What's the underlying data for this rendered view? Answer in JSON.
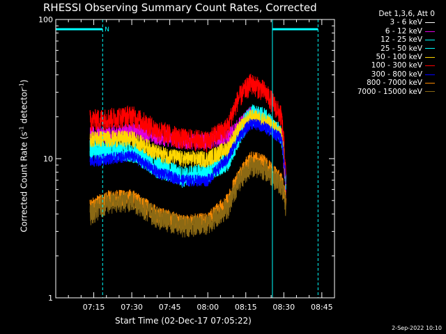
{
  "chart_data": {
    "type": "line",
    "title": "RHESSI Observing Summary Count Rates, Corrected",
    "xlabel": "Start Time (02-Dec-17 07:05:22)",
    "ylabel_main": "Corrected Count Rate (s",
    "ylabel_sup1": "-1",
    "ylabel_mid": " detector",
    "ylabel_sup2": "-1",
    "ylabel_end": ")",
    "y_scale": "log",
    "ylim": [
      1,
      100
    ],
    "y_ticks": [
      {
        "value": 1,
        "label": "1"
      },
      {
        "value": 10,
        "label": "10"
      },
      {
        "value": 100,
        "label": "100"
      }
    ],
    "xlim_minutes": [
      0,
      110
    ],
    "x_ticks": [
      {
        "value": 15,
        "label": "07:15"
      },
      {
        "value": 30,
        "label": "07:30"
      },
      {
        "value": 45,
        "label": "07:45"
      },
      {
        "value": 60,
        "label": "08:00"
      },
      {
        "value": 75,
        "label": "08:15"
      },
      {
        "value": 90,
        "label": "08:30"
      },
      {
        "value": 105,
        "label": "08:45"
      }
    ],
    "legend_header": "Det 1,3,6, Att 0",
    "legend_position": "right",
    "night_marker_label": "N",
    "night_bars": [
      {
        "start": 0,
        "end": 18.5
      },
      {
        "start": 85.5,
        "end": 103.5
      }
    ],
    "night_lines": [
      0,
      18.5,
      85.5,
      103.5
    ],
    "data_start": 13.5,
    "data_end": 90.8,
    "series": [
      {
        "name": "3 - 6 keV",
        "color": "#000000",
        "profile": [
          [
            13.5,
            16
          ],
          [
            20,
            16.5
          ],
          [
            30,
            17.5
          ],
          [
            40,
            16
          ],
          [
            50,
            15.5
          ],
          [
            60,
            15.5
          ],
          [
            68,
            16
          ],
          [
            72,
            20
          ],
          [
            77,
            22
          ],
          [
            82,
            21
          ],
          [
            89,
            17
          ],
          [
            90.8,
            9
          ]
        ]
      },
      {
        "name": "6 - 12 keV",
        "color": "#e000e0",
        "profile": [
          [
            13.5,
            15
          ],
          [
            20,
            15
          ],
          [
            30,
            16
          ],
          [
            40,
            14.5
          ],
          [
            50,
            13.5
          ],
          [
            60,
            13.5
          ],
          [
            68,
            14.5
          ],
          [
            72,
            17
          ],
          [
            77,
            21
          ],
          [
            82,
            19
          ],
          [
            89,
            15
          ],
          [
            90.8,
            5
          ]
        ]
      },
      {
        "name": "12 - 25 keV",
        "color": "#00ffff",
        "profile": [
          [
            13.5,
            12
          ],
          [
            20,
            12
          ],
          [
            30,
            11.5
          ],
          [
            40,
            9
          ],
          [
            50,
            7.5
          ],
          [
            60,
            8
          ],
          [
            68,
            10
          ],
          [
            72,
            15
          ],
          [
            77,
            21
          ],
          [
            82,
            20
          ],
          [
            89,
            15
          ],
          [
            90.8,
            7
          ]
        ]
      },
      {
        "name": "25 - 50 keV",
        "color": "#00ffff",
        "profile": [
          [
            13.5,
            11
          ],
          [
            20,
            11
          ],
          [
            30,
            10.5
          ],
          [
            40,
            8
          ],
          [
            50,
            7
          ],
          [
            60,
            7.5
          ],
          [
            68,
            9
          ],
          [
            72,
            13
          ],
          [
            77,
            19
          ],
          [
            82,
            18
          ],
          [
            89,
            14
          ],
          [
            90.8,
            7
          ]
        ]
      },
      {
        "name": "50 - 100 keV",
        "color": "#ffd700",
        "profile": [
          [
            13.5,
            14
          ],
          [
            20,
            14
          ],
          [
            30,
            14
          ],
          [
            40,
            11
          ],
          [
            50,
            10
          ],
          [
            60,
            10
          ],
          [
            68,
            12
          ],
          [
            72,
            16
          ],
          [
            77,
            20
          ],
          [
            82,
            19
          ],
          [
            89,
            15
          ],
          [
            90.8,
            7
          ]
        ]
      },
      {
        "name": "100 - 300 keV",
        "color": "#ff0000",
        "profile": [
          [
            13.5,
            19
          ],
          [
            20,
            19.5
          ],
          [
            30,
            20.5
          ],
          [
            40,
            16
          ],
          [
            50,
            14
          ],
          [
            60,
            13.5
          ],
          [
            68,
            17
          ],
          [
            72,
            27
          ],
          [
            77,
            35
          ],
          [
            82,
            31
          ],
          [
            89,
            20
          ],
          [
            90.8,
            7
          ]
        ]
      },
      {
        "name": "300 - 800 keV",
        "color": "#0000ff",
        "profile": [
          [
            13.5,
            9.5
          ],
          [
            20,
            10
          ],
          [
            30,
            10.5
          ],
          [
            40,
            8
          ],
          [
            50,
            7
          ],
          [
            60,
            7
          ],
          [
            68,
            10
          ],
          [
            72,
            14
          ],
          [
            77,
            18
          ],
          [
            82,
            17
          ],
          [
            89,
            14
          ],
          [
            90.8,
            7
          ]
        ]
      },
      {
        "name": "800 - 7000 keV",
        "color": "#ff8c00",
        "profile": [
          [
            13.5,
            4.5
          ],
          [
            20,
            5.2
          ],
          [
            30,
            5.3
          ],
          [
            40,
            4
          ],
          [
            50,
            3.5
          ],
          [
            60,
            3.6
          ],
          [
            68,
            5
          ],
          [
            72,
            7.5
          ],
          [
            77,
            10
          ],
          [
            82,
            9.5
          ],
          [
            89,
            7
          ],
          [
            90.8,
            5
          ]
        ]
      },
      {
        "name": "7000 - 15000 keV",
        "color": "#8b6914",
        "profile": [
          [
            13.5,
            4
          ],
          [
            20,
            4.8
          ],
          [
            30,
            5
          ],
          [
            40,
            3.8
          ],
          [
            50,
            3.3
          ],
          [
            60,
            3.4
          ],
          [
            68,
            4.5
          ],
          [
            72,
            6.8
          ],
          [
            77,
            9
          ],
          [
            82,
            8.5
          ],
          [
            89,
            6.5
          ],
          [
            90.8,
            4.5
          ]
        ]
      }
    ]
  },
  "footer_date": "2-Sep-2022 10:10"
}
